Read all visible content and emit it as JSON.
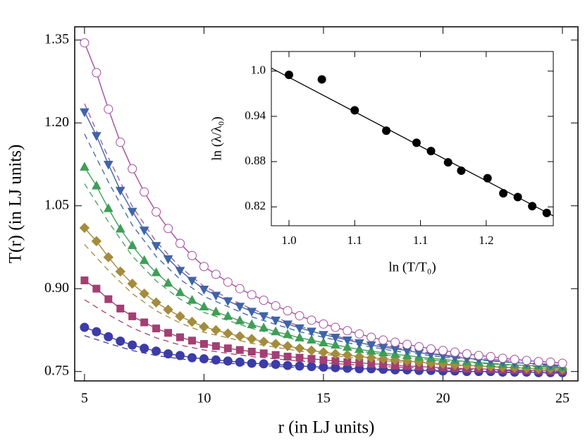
{
  "chart_data": [
    {
      "type": "scatter",
      "xlabel": "r (in LJ units)",
      "ylabel": "T(r) (in LJ units)",
      "xlim": [
        4.59,
        25.65
      ],
      "ylim": [
        0.733,
        1.374
      ],
      "xticks": [
        5,
        10,
        15,
        20,
        25
      ],
      "yticks": [
        0.75,
        {
          "value": 0.9,
          "label": "0.90"
        },
        1.05,
        {
          "value": 1.2,
          "label": "1.20"
        },
        1.35
      ],
      "x": [
        5,
        5.5,
        6,
        6.5,
        7,
        7.5,
        8,
        8.5,
        9,
        9.5,
        10,
        10.5,
        11,
        11.5,
        12,
        12.5,
        13,
        13.5,
        14,
        14.5,
        15,
        15.5,
        16,
        16.5,
        17,
        17.5,
        18,
        18.5,
        19,
        19.5,
        20,
        20.5,
        21,
        21.5,
        22,
        22.5,
        23,
        23.5,
        24,
        24.5,
        25
      ],
      "series": [
        {
          "color": "#a34c9f",
          "marker": "open-circle",
          "values": [
            1.345,
            1.291,
            1.225,
            1.165,
            1.117,
            1.075,
            1.039,
            1.009,
            0.982,
            0.96,
            0.94,
            0.926,
            0.912,
            0.9,
            0.889,
            0.879,
            0.869,
            0.86,
            0.851,
            0.843,
            0.836,
            0.83,
            0.824,
            0.818,
            0.812,
            0.807,
            0.803,
            0.799,
            0.795,
            0.791,
            0.788,
            0.785,
            0.782,
            0.779,
            0.777,
            0.774,
            0.772,
            0.77,
            0.768,
            0.767,
            0.765
          ]
        },
        {
          "color": "#3f64a6",
          "marker": "triangle-down",
          "values": [
            1.22,
            1.177,
            1.125,
            1.078,
            1.04,
            1.006,
            0.978,
            0.954,
            0.933,
            0.915,
            0.899,
            0.888,
            0.878,
            0.868,
            0.859,
            0.851,
            0.843,
            0.836,
            0.829,
            0.823,
            0.817,
            0.812,
            0.807,
            0.802,
            0.798,
            0.794,
            0.791,
            0.788,
            0.784,
            0.782,
            0.779,
            0.776,
            0.774,
            0.772,
            0.77,
            0.768,
            0.766,
            0.765,
            0.764,
            0.762,
            0.761
          ]
        },
        {
          "color": "#3f9e58",
          "marker": "triangle-up",
          "values": [
            1.12,
            1.086,
            1.045,
            1.008,
            0.978,
            0.951,
            0.929,
            0.91,
            0.893,
            0.879,
            0.867,
            0.858,
            0.85,
            0.842,
            0.835,
            0.829,
            0.822,
            0.817,
            0.811,
            0.807,
            0.802,
            0.798,
            0.794,
            0.79,
            0.787,
            0.784,
            0.781,
            0.779,
            0.776,
            0.774,
            0.772,
            0.77,
            0.768,
            0.766,
            0.765,
            0.763,
            0.762,
            0.761,
            0.76,
            0.759,
            0.757
          ]
        },
        {
          "color": "#a38c3d",
          "marker": "diamond",
          "values": [
            1.01,
            0.986,
            0.957,
            0.931,
            0.909,
            0.891,
            0.875,
            0.862,
            0.85,
            0.84,
            0.831,
            0.825,
            0.819,
            0.814,
            0.809,
            0.804,
            0.8,
            0.796,
            0.792,
            0.788,
            0.785,
            0.782,
            0.78,
            0.777,
            0.775,
            0.773,
            0.771,
            0.769,
            0.767,
            0.765,
            0.764,
            0.762,
            0.761,
            0.76,
            0.759,
            0.758,
            0.757,
            0.756,
            0.755,
            0.755,
            0.754
          ]
        },
        {
          "color": "#a33f72",
          "marker": "square",
          "values": [
            0.915,
            0.9,
            0.881,
            0.864,
            0.85,
            0.839,
            0.828,
            0.82,
            0.812,
            0.806,
            0.8,
            0.796,
            0.792,
            0.789,
            0.786,
            0.783,
            0.78,
            0.777,
            0.775,
            0.773,
            0.771,
            0.769,
            0.767,
            0.766,
            0.764,
            0.763,
            0.761,
            0.76,
            0.759,
            0.758,
            0.757,
            0.756,
            0.755,
            0.755,
            0.754,
            0.753,
            0.753,
            0.752,
            0.752,
            0.751,
            0.751
          ]
        },
        {
          "color": "#3c3ca8",
          "marker": "circle",
          "values": [
            0.83,
            0.822,
            0.813,
            0.805,
            0.798,
            0.792,
            0.787,
            0.782,
            0.779,
            0.775,
            0.773,
            0.771,
            0.769,
            0.767,
            0.765,
            0.764,
            0.763,
            0.761,
            0.76,
            0.759,
            0.758,
            0.757,
            0.756,
            0.755,
            0.755,
            0.754,
            0.753,
            0.753,
            0.752,
            0.752,
            0.751,
            0.751,
            0.75,
            0.75,
            0.75,
            0.749,
            0.749,
            0.749,
            0.748,
            0.748,
            0.748
          ]
        }
      ],
      "dashed_x": [
        5,
        6,
        7,
        8,
        9,
        10,
        12,
        14,
        16,
        18,
        20,
        25
      ],
      "dashed_series": [
        {
          "color": "#a34c9f",
          "values": [
            1.235,
            1.137,
            1.049,
            0.985,
            0.939,
            0.904,
            0.863,
            0.832,
            0.809,
            0.793,
            0.78,
            0.761
          ]
        },
        {
          "color": "#3f64a6",
          "values": [
            1.18,
            1.093,
            1.015,
            0.958,
            0.917,
            0.886,
            0.849,
            0.822,
            0.802,
            0.787,
            0.776,
            0.759
          ]
        },
        {
          "color": "#3f9e58",
          "values": [
            1.09,
            1.021,
            0.959,
            0.914,
            0.881,
            0.857,
            0.828,
            0.806,
            0.79,
            0.778,
            0.769,
            0.756
          ]
        },
        {
          "color": "#a38c3d",
          "values": [
            0.98,
            0.933,
            0.891,
            0.86,
            0.838,
            0.821,
            0.801,
            0.787,
            0.776,
            0.768,
            0.762,
            0.753
          ]
        },
        {
          "color": "#a33f72",
          "values": [
            0.88,
            0.853,
            0.829,
            0.811,
            0.798,
            0.789,
            0.777,
            0.769,
            0.763,
            0.758,
            0.755,
            0.749
          ]
        },
        {
          "color": "#3c3ca8",
          "values": [
            0.815,
            0.801,
            0.788,
            0.779,
            0.773,
            0.768,
            0.762,
            0.757,
            0.754,
            0.752,
            0.75,
            0.747
          ]
        }
      ]
    },
    {
      "type": "scatter",
      "xlabel": "ln (T/T₀)",
      "ylabel": "ln (λ/λ₀)",
      "xlim": [
        0.9866,
        1.201
      ],
      "ylim": [
        0.795,
        1.026
      ],
      "xticks": [
        {
          "value": 1.0,
          "label": "1.0"
        },
        {
          "value": 1.05,
          "label": "1.1"
        },
        {
          "value": 1.1,
          "label": "1.1"
        },
        {
          "value": 1.15,
          "label": "1.2"
        }
      ],
      "yticks": [
        0.82,
        0.88,
        0.94,
        {
          "value": 1.0,
          "label": "1.0"
        }
      ],
      "color": "#000000",
      "x": [
        1.0,
        1.025,
        1.05,
        1.074,
        1.097,
        1.108,
        1.121,
        1.131,
        1.151,
        1.163,
        1.174,
        1.185,
        1.196
      ],
      "values": [
        0.995,
        0.989,
        0.948,
        0.921,
        0.905,
        0.894,
        0.879,
        0.868,
        0.858,
        0.838,
        0.833,
        0.821,
        0.812
      ],
      "fit": {
        "x": [
          0.9866,
          1.201
        ],
        "values": [
          1.004,
          0.808
        ]
      }
    }
  ]
}
